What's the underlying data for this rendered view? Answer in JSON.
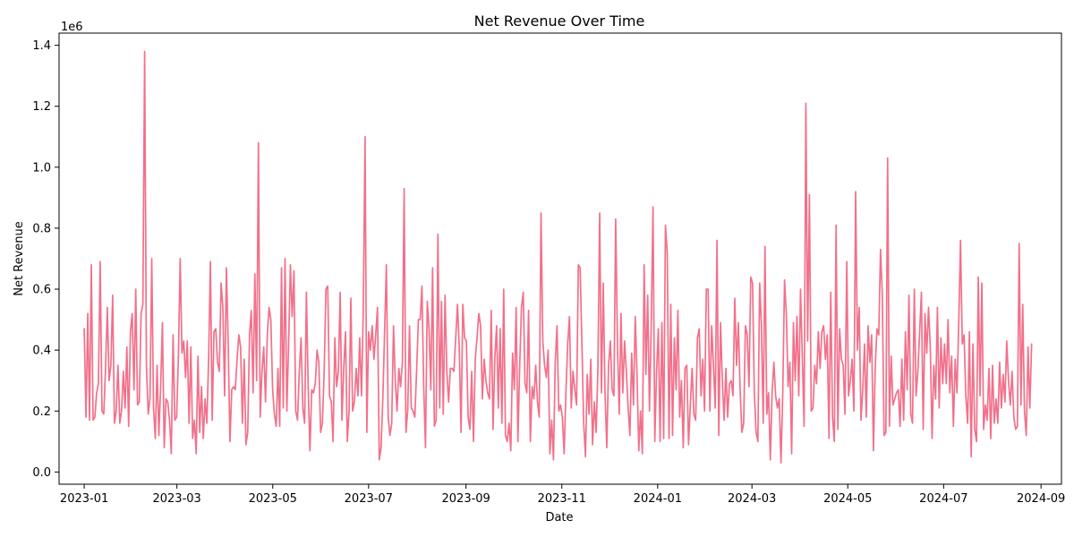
{
  "chart_data": {
    "type": "line",
    "title": "Net Revenue Over Time",
    "xlabel": "Date",
    "ylabel": "Net Revenue",
    "y_scale_label": "1e6",
    "xlim": [
      "2022-12-16",
      "2024-09-14"
    ],
    "ylim": [
      -0.04,
      1.44
    ],
    "grid": false,
    "x_ticks": [
      "2023-01",
      "2023-03",
      "2023-05",
      "2023-07",
      "2023-09",
      "2023-11",
      "2024-01",
      "2024-03",
      "2024-05",
      "2024-07",
      "2024-09"
    ],
    "y_ticks": [
      0.0,
      0.2,
      0.4,
      0.6,
      0.8,
      1.0,
      1.2,
      1.4
    ],
    "y_tick_labels": [
      "0.0",
      "0.2",
      "0.4",
      "0.6",
      "0.8",
      "1.0",
      "1.2",
      "1.4"
    ],
    "series": [
      {
        "color": "#f2708a",
        "start_date": "2023-01-01",
        "end_date": "2024-08-26",
        "values": [
          0.47,
          0.18,
          0.52,
          0.17,
          0.68,
          0.17,
          0.18,
          0.26,
          0.29,
          0.69,
          0.2,
          0.19,
          0.34,
          0.54,
          0.3,
          0.35,
          0.58,
          0.16,
          0.2,
          0.35,
          0.16,
          0.2,
          0.33,
          0.21,
          0.41,
          0.15,
          0.46,
          0.52,
          0.27,
          0.6,
          0.22,
          0.23,
          0.52,
          0.55,
          1.38,
          0.35,
          0.19,
          0.24,
          0.7,
          0.21,
          0.11,
          0.35,
          0.12,
          0.28,
          0.49,
          0.08,
          0.24,
          0.23,
          0.17,
          0.06,
          0.45,
          0.17,
          0.18,
          0.38,
          0.7,
          0.39,
          0.43,
          0.31,
          0.43,
          0.16,
          0.41,
          0.11,
          0.17,
          0.06,
          0.38,
          0.13,
          0.28,
          0.11,
          0.24,
          0.16,
          0.37,
          0.69,
          0.17,
          0.46,
          0.47,
          0.36,
          0.33,
          0.62,
          0.54,
          0.25,
          0.67,
          0.42,
          0.1,
          0.27,
          0.28,
          0.27,
          0.37,
          0.45,
          0.41,
          0.16,
          0.37,
          0.09,
          0.13,
          0.45,
          0.53,
          0.26,
          0.65,
          0.3,
          1.08,
          0.18,
          0.33,
          0.41,
          0.23,
          0.45,
          0.54,
          0.5,
          0.27,
          0.19,
          0.15,
          0.34,
          0.15,
          0.67,
          0.21,
          0.7,
          0.2,
          0.42,
          0.68,
          0.51,
          0.66,
          0.2,
          0.17,
          0.33,
          0.44,
          0.21,
          0.16,
          0.59,
          0.28,
          0.07,
          0.27,
          0.26,
          0.29,
          0.4,
          0.36,
          0.13,
          0.16,
          0.33,
          0.6,
          0.61,
          0.25,
          0.23,
          0.1,
          0.44,
          0.28,
          0.33,
          0.59,
          0.17,
          0.34,
          0.46,
          0.1,
          0.2,
          0.57,
          0.2,
          0.23,
          0.34,
          0.25,
          0.44,
          0.25,
          0.53,
          1.1,
          0.13,
          0.46,
          0.4,
          0.48,
          0.37,
          0.45,
          0.54,
          0.04,
          0.08,
          0.24,
          0.46,
          0.68,
          0.18,
          0.12,
          0.16,
          0.48,
          0.3,
          0.2,
          0.34,
          0.28,
          0.36,
          0.93,
          0.13,
          0.2,
          0.48,
          0.21,
          0.2,
          0.18,
          0.33,
          0.5,
          0.5,
          0.61,
          0.28,
          0.08,
          0.56,
          0.47,
          0.27,
          0.67,
          0.15,
          0.17,
          0.78,
          0.21,
          0.56,
          0.19,
          0.58,
          0.33,
          0.23,
          0.34,
          0.34,
          0.33,
          0.44,
          0.55,
          0.41,
          0.13,
          0.55,
          0.44,
          0.43,
          0.18,
          0.14,
          0.33,
          0.1,
          0.37,
          0.44,
          0.52,
          0.48,
          0.24,
          0.37,
          0.3,
          0.26,
          0.24,
          0.53,
          0.14,
          0.37,
          0.48,
          0.21,
          0.47,
          0.16,
          0.6,
          0.12,
          0.1,
          0.16,
          0.07,
          0.39,
          0.27,
          0.54,
          0.1,
          0.35,
          0.54,
          0.59,
          0.29,
          0.26,
          0.53,
          0.1,
          0.28,
          0.24,
          0.35,
          0.23,
          0.18,
          0.85,
          0.43,
          0.35,
          0.31,
          0.4,
          0.06,
          0.17,
          0.04,
          0.36,
          0.48,
          0.2,
          0.22,
          0.18,
          0.06,
          0.26,
          0.42,
          0.51,
          0.21,
          0.33,
          0.27,
          0.22,
          0.68,
          0.67,
          0.42,
          0.16,
          0.05,
          0.32,
          0.19,
          0.37,
          0.09,
          0.23,
          0.13,
          0.34,
          0.85,
          0.26,
          0.62,
          0.26,
          0.08,
          0.35,
          0.43,
          0.27,
          0.25,
          0.83,
          0.42,
          0.19,
          0.52,
          0.26,
          0.43,
          0.33,
          0.21,
          0.12,
          0.39,
          0.22,
          0.51,
          0.32,
          0.07,
          0.2,
          0.06,
          0.68,
          0.32,
          0.58,
          0.2,
          0.48,
          0.87,
          0.1,
          0.33,
          0.47,
          0.1,
          0.49,
          0.11,
          0.81,
          0.72,
          0.11,
          0.55,
          0.12,
          0.44,
          0.27,
          0.53,
          0.18,
          0.3,
          0.08,
          0.34,
          0.35,
          0.09,
          0.22,
          0.34,
          0.19,
          0.17,
          0.44,
          0.47,
          0.25,
          0.37,
          0.2,
          0.6,
          0.6,
          0.2,
          0.48,
          0.35,
          0.21,
          0.76,
          0.12,
          0.49,
          0.3,
          0.17,
          0.34,
          0.18,
          0.29,
          0.3,
          0.25,
          0.57,
          0.35,
          0.49,
          0.27,
          0.13,
          0.16,
          0.48,
          0.45,
          0.28,
          0.64,
          0.62,
          0.26,
          0.13,
          0.1,
          0.62,
          0.48,
          0.16,
          0.74,
          0.19,
          0.26,
          0.04,
          0.26,
          0.36,
          0.25,
          0.21,
          0.24,
          0.03,
          0.26,
          0.63,
          0.52,
          0.28,
          0.36,
          0.06,
          0.49,
          0.3,
          0.51,
          0.25,
          0.6,
          0.38,
          0.15,
          1.21,
          0.43,
          0.91,
          0.2,
          0.21,
          0.35,
          0.29,
          0.46,
          0.34,
          0.46,
          0.48,
          0.37,
          0.45,
          0.11,
          0.59,
          0.18,
          0.1,
          0.81,
          0.14,
          0.47,
          0.37,
          0.35,
          0.19,
          0.69,
          0.25,
          0.3,
          0.37,
          0.2,
          0.92,
          0.4,
          0.54,
          0.17,
          0.27,
          0.42,
          0.18,
          0.48,
          0.36,
          0.45,
          0.07,
          0.34,
          0.47,
          0.45,
          0.73,
          0.58,
          0.12,
          0.13,
          1.03,
          0.15,
          0.38,
          0.22,
          0.24,
          0.26,
          0.27,
          0.15,
          0.37,
          0.17,
          0.46,
          0.27,
          0.58,
          0.19,
          0.16,
          0.6,
          0.25,
          0.33,
          0.46,
          0.59,
          0.14,
          0.52,
          0.39,
          0.54,
          0.41,
          0.11,
          0.35,
          0.24,
          0.54,
          0.21,
          0.44,
          0.29,
          0.42,
          0.29,
          0.5,
          0.26,
          0.38,
          0.15,
          0.37,
          0.26,
          0.49,
          0.76,
          0.42,
          0.45,
          0.25,
          0.16,
          0.46,
          0.05,
          0.42,
          0.14,
          0.1,
          0.64,
          0.25,
          0.62,
          0.14,
          0.22,
          0.17,
          0.34,
          0.11,
          0.35,
          0.16,
          0.24,
          0.16,
          0.36,
          0.21,
          0.32,
          0.23,
          0.43,
          0.3,
          0.22,
          0.33,
          0.18,
          0.14,
          0.15,
          0.75,
          0.22,
          0.55,
          0.2,
          0.12,
          0.41,
          0.21,
          0.42
        ]
      }
    ]
  }
}
